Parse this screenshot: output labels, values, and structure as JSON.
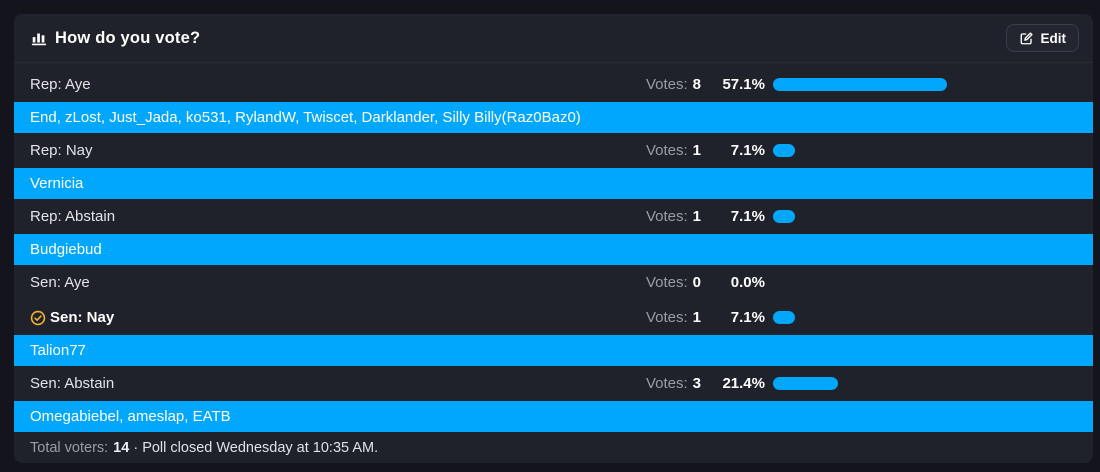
{
  "header": {
    "title": "How do you vote?",
    "edit_label": "Edit"
  },
  "labels": {
    "votes": "Votes:"
  },
  "options": [
    {
      "label": "Rep: Aye",
      "votes": "8",
      "percent": "57.1%",
      "pct": 57.1,
      "selected": false,
      "voters": "End, zLost, Just_Jada, ko531, RylandW, Twiscet, Darklander, Silly Billy(Raz0Baz0)"
    },
    {
      "label": "Rep: Nay",
      "votes": "1",
      "percent": "7.1%",
      "pct": 7.1,
      "selected": false,
      "voters": "Vernicia"
    },
    {
      "label": "Rep: Abstain",
      "votes": "1",
      "percent": "7.1%",
      "pct": 7.1,
      "selected": false,
      "voters": "Budgiebud"
    },
    {
      "label": "Sen: Aye",
      "votes": "0",
      "percent": "0.0%",
      "pct": 0,
      "selected": false,
      "voters": null
    },
    {
      "label": "Sen: Nay",
      "votes": "1",
      "percent": "7.1%",
      "pct": 7.1,
      "selected": true,
      "voters": "Talion77"
    },
    {
      "label": "Sen: Abstain",
      "votes": "3",
      "percent": "21.4%",
      "pct": 21.4,
      "selected": false,
      "voters": "Omegabiebel, ameslap, EATB"
    }
  ],
  "footer": {
    "total_voters_label": "Total voters:",
    "total_voters": "14",
    "closed_text": " · Poll closed Wednesday at 10:35 AM."
  },
  "colors": {
    "accent_blue": "#00a7fc",
    "check_gold": "#edb431"
  }
}
